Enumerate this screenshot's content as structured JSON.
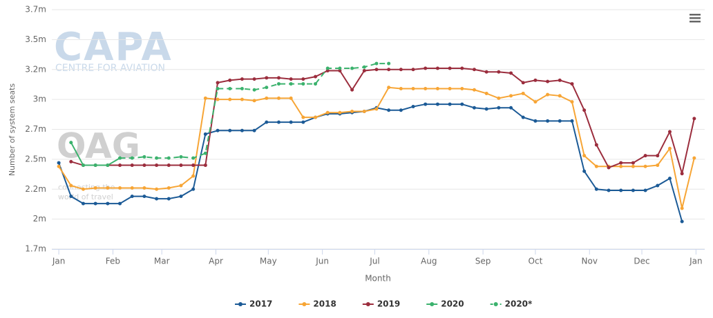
{
  "chart_data": {
    "type": "line",
    "xlabel": "Month",
    "ylabel": "Number of system seats",
    "watermarks": [
      "CAPA",
      "CENTRE FOR AVIATION",
      "OAG",
      "connecting the",
      "world of travel"
    ],
    "x": [
      0,
      7,
      14,
      21,
      28,
      35,
      42,
      49,
      56,
      63,
      70,
      77,
      84,
      91,
      98,
      105,
      112,
      119,
      126,
      133,
      140,
      147,
      154,
      161,
      168,
      175,
      182,
      189,
      196,
      203,
      210,
      217,
      224,
      231,
      238,
      245,
      252,
      259,
      266,
      273,
      280,
      287,
      294,
      301,
      308,
      315,
      322,
      329,
      336,
      343,
      350,
      357,
      364
    ],
    "xlim": [
      -4,
      370
    ],
    "xticks": [
      {
        "value": 0,
        "label": "Jan"
      },
      {
        "value": 31,
        "label": "Feb"
      },
      {
        "value": 59,
        "label": "Mar"
      },
      {
        "value": 90,
        "label": "Apr"
      },
      {
        "value": 120,
        "label": "May"
      },
      {
        "value": 151,
        "label": "Jun"
      },
      {
        "value": 181,
        "label": "Jul"
      },
      {
        "value": 212,
        "label": "Aug"
      },
      {
        "value": 243,
        "label": "Sep"
      },
      {
        "value": 273,
        "label": "Oct"
      },
      {
        "value": 304,
        "label": "Nov"
      },
      {
        "value": 334,
        "label": "Dec"
      },
      {
        "value": 365,
        "label": "Jan"
      }
    ],
    "ylim": [
      1750000,
      3750000
    ],
    "yticks": [
      {
        "value": 1750000,
        "label": "1.7m"
      },
      {
        "value": 2000000,
        "label": "2m"
      },
      {
        "value": 2250000,
        "label": "2.2m"
      },
      {
        "value": 2500000,
        "label": "2.5m"
      },
      {
        "value": 2750000,
        "label": "2.7m"
      },
      {
        "value": 3000000,
        "label": "3m"
      },
      {
        "value": 3250000,
        "label": "3.2m"
      },
      {
        "value": 3500000,
        "label": "3.5m"
      },
      {
        "value": 3750000,
        "label": "3.7m"
      }
    ],
    "grid": true,
    "legend": "bottom",
    "series": [
      {
        "name": "2017",
        "color": "#1b5a96",
        "dashed": false,
        "values": [
          2470000,
          2190000,
          2130000,
          2130000,
          2130000,
          2130000,
          2190000,
          2190000,
          2170000,
          2170000,
          2190000,
          2250000,
          2710000,
          2740000,
          2740000,
          2740000,
          2740000,
          2810000,
          2810000,
          2810000,
          2810000,
          2850000,
          2880000,
          2880000,
          2890000,
          2900000,
          2930000,
          2910000,
          2910000,
          2940000,
          2960000,
          2960000,
          2960000,
          2960000,
          2930000,
          2920000,
          2930000,
          2930000,
          2850000,
          2820000,
          2820000,
          2820000,
          2820000,
          2400000,
          2250000,
          2240000,
          2240000,
          2240000,
          2240000,
          2280000,
          2340000,
          1980000,
          null
        ]
      },
      {
        "name": "2018",
        "color": "#f7a535",
        "dashed": false,
        "values": [
          2440000,
          2280000,
          2250000,
          2260000,
          2260000,
          2260000,
          2260000,
          2260000,
          2250000,
          2260000,
          2280000,
          2360000,
          3010000,
          3000000,
          3000000,
          3000000,
          2990000,
          3010000,
          3010000,
          3010000,
          2850000,
          2850000,
          2890000,
          2890000,
          2900000,
          2900000,
          2920000,
          3100000,
          3090000,
          3090000,
          3090000,
          3090000,
          3090000,
          3090000,
          3080000,
          3050000,
          3010000,
          3030000,
          3050000,
          2980000,
          3040000,
          3030000,
          2980000,
          2530000,
          2440000,
          2440000,
          2440000,
          2440000,
          2440000,
          2450000,
          2590000,
          2090000,
          2510000
        ]
      },
      {
        "name": "2019",
        "color": "#9b2d3d",
        "dashed": false,
        "values": [
          null,
          2480000,
          2450000,
          2450000,
          2450000,
          2450000,
          2450000,
          2450000,
          2450000,
          2450000,
          2450000,
          2450000,
          2450000,
          3140000,
          3160000,
          3170000,
          3170000,
          3180000,
          3180000,
          3170000,
          3170000,
          3190000,
          3240000,
          3240000,
          3080000,
          3240000,
          3250000,
          3250000,
          3250000,
          3250000,
          3260000,
          3260000,
          3260000,
          3260000,
          3250000,
          3230000,
          3230000,
          3220000,
          3140000,
          3160000,
          3150000,
          3160000,
          3130000,
          2910000,
          2620000,
          2430000,
          2470000,
          2470000,
          2530000,
          2530000,
          2730000,
          2380000,
          2840000
        ]
      },
      {
        "name": "2020",
        "color": "#3bb26d",
        "dashed": false,
        "values": [
          null,
          2640000,
          2450000,
          2450000,
          2450000,
          2510000,
          null,
          null,
          null,
          null,
          null,
          null,
          null,
          null,
          null,
          null,
          null,
          null,
          null,
          null,
          null,
          null,
          null,
          null,
          null,
          null,
          null,
          null,
          null,
          null,
          null,
          null,
          null,
          null,
          null,
          null,
          null,
          null,
          null,
          null,
          null,
          null,
          null,
          null,
          null,
          null,
          null,
          null,
          null,
          null,
          null,
          null,
          null
        ]
      },
      {
        "name": "2020*",
        "color": "#3bb26d",
        "dashed": true,
        "values": [
          null,
          null,
          null,
          null,
          null,
          2510000,
          2510000,
          2520000,
          2510000,
          2510000,
          2520000,
          2510000,
          2550000,
          3090000,
          3090000,
          3090000,
          3080000,
          3100000,
          3130000,
          3130000,
          3130000,
          3130000,
          3260000,
          3260000,
          3260000,
          3270000,
          3300000,
          3300000,
          null,
          null,
          null,
          null,
          null,
          null,
          null,
          null,
          null,
          null,
          null,
          null,
          null,
          null,
          null,
          null,
          null,
          null,
          null,
          null,
          null,
          null,
          null,
          null,
          null
        ]
      }
    ]
  }
}
